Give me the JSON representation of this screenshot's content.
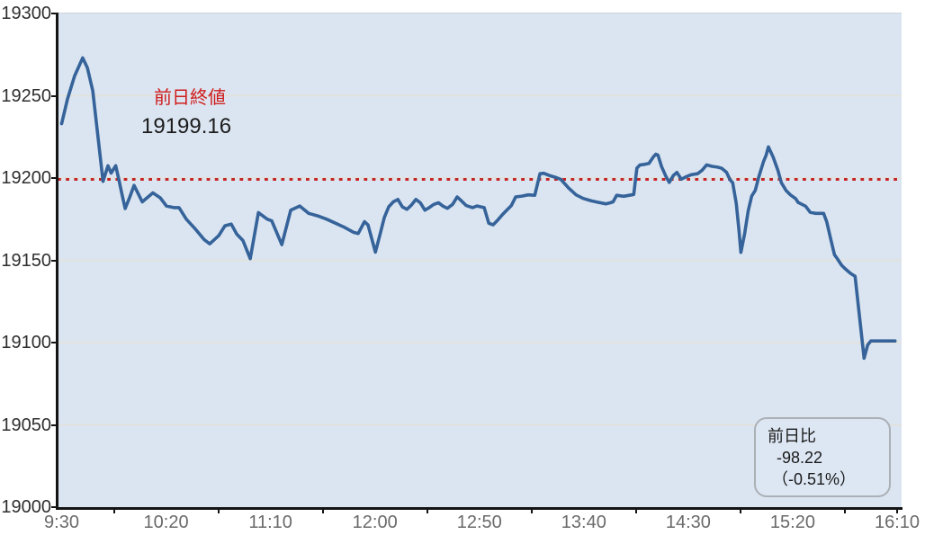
{
  "chart_data": {
    "type": "line",
    "title": "",
    "legend": [],
    "grid": "horizontal-only",
    "y_axis": {
      "min": 19000,
      "max": 19300,
      "step": 50,
      "tick_labels": [
        "19300",
        "19250",
        "19200",
        "19150",
        "19100",
        "19050",
        "19000"
      ]
    },
    "x_axis": {
      "unit": "time",
      "range_minutes": [
        0,
        400
      ],
      "tick_interval_minutes": 50,
      "tick_labels": [
        "9:30",
        "10:20",
        "11:10",
        "12:00",
        "12:50",
        "13:40",
        "14:30",
        "15:20",
        "16:10"
      ]
    },
    "previous_close": {
      "label": "前日終値",
      "value_text": "19199.16",
      "value": 19199.16
    },
    "change_box": {
      "label": "前日比",
      "change_text": "-98.22",
      "percent_text": "（-0.51%）",
      "change": -98.22,
      "percent": -0.51
    },
    "series": [
      {
        "name": "intraday-price",
        "points": [
          [
            0,
            19233
          ],
          [
            2.8,
            19248
          ],
          [
            6.2,
            19262
          ],
          [
            10.1,
            19273
          ],
          [
            12.3,
            19267
          ],
          [
            14.9,
            19253
          ],
          [
            19.8,
            19198
          ],
          [
            22.2,
            19207.5
          ],
          [
            23.7,
            19203
          ],
          [
            25.9,
            19207.5
          ],
          [
            27.4,
            19199
          ],
          [
            28.9,
            19190
          ],
          [
            30.4,
            19181.5
          ],
          [
            32.5,
            19188
          ],
          [
            34.7,
            19195.5
          ],
          [
            38.6,
            19185.5
          ],
          [
            43.7,
            19191
          ],
          [
            47.2,
            19188
          ],
          [
            50.2,
            19183
          ],
          [
            53.7,
            19182
          ],
          [
            56.2,
            19182
          ],
          [
            59.7,
            19175
          ],
          [
            64,
            19169
          ],
          [
            68.3,
            19162.5
          ],
          [
            70.9,
            19160
          ],
          [
            75.2,
            19165
          ],
          [
            78.2,
            19171
          ],
          [
            81.2,
            19172
          ],
          [
            83.8,
            19166
          ],
          [
            86.8,
            19162
          ],
          [
            90.3,
            19151
          ],
          [
            94.2,
            19179
          ],
          [
            98.5,
            19175
          ],
          [
            100.6,
            19174
          ],
          [
            105.4,
            19159.5
          ],
          [
            109.7,
            19180.5
          ],
          [
            114,
            19183
          ],
          [
            118.3,
            19178.5
          ],
          [
            122.6,
            19177
          ],
          [
            126.9,
            19175
          ],
          [
            131.2,
            19172.5
          ],
          [
            135.5,
            19170
          ],
          [
            139.8,
            19167
          ],
          [
            142,
            19166.3
          ],
          [
            145,
            19173.5
          ],
          [
            146.7,
            19171.5
          ],
          [
            150.2,
            19155
          ],
          [
            152.3,
            19165
          ],
          [
            154.5,
            19176
          ],
          [
            156.6,
            19182.5
          ],
          [
            158.8,
            19185.5
          ],
          [
            161,
            19187
          ],
          [
            163.1,
            19182.5
          ],
          [
            165.3,
            19181
          ],
          [
            167.4,
            19183.5
          ],
          [
            169.6,
            19187
          ],
          [
            171.7,
            19185
          ],
          [
            173.9,
            19180.5
          ],
          [
            176,
            19182
          ],
          [
            178.2,
            19184
          ],
          [
            180.4,
            19185
          ],
          [
            182.5,
            19183
          ],
          [
            184.7,
            19181.6
          ],
          [
            187.2,
            19184
          ],
          [
            189.4,
            19188.5
          ],
          [
            191.5,
            19186
          ],
          [
            193.7,
            19183.3
          ],
          [
            196.7,
            19182
          ],
          [
            198.9,
            19183
          ],
          [
            202.3,
            19182
          ],
          [
            204.5,
            19172.5
          ],
          [
            206.6,
            19171.6
          ],
          [
            208.8,
            19174.5
          ],
          [
            211,
            19177.7
          ],
          [
            213.1,
            19180.5
          ],
          [
            215.3,
            19183.3
          ],
          [
            217.4,
            19188.5
          ],
          [
            220.4,
            19189
          ],
          [
            223.4,
            19189.8
          ],
          [
            226.5,
            19189.5
          ],
          [
            229,
            19202.6
          ],
          [
            230.8,
            19202.9
          ],
          [
            233.4,
            19201.6
          ],
          [
            236.8,
            19200.3
          ],
          [
            239,
            19199.2
          ],
          [
            242.8,
            19193.8
          ],
          [
            246.3,
            19189.8
          ],
          [
            249.7,
            19187.6
          ],
          [
            253.6,
            19186.1
          ],
          [
            257.1,
            19185.2
          ],
          [
            260.5,
            19184.3
          ],
          [
            262.7,
            19185
          ],
          [
            264,
            19185.5
          ],
          [
            265.7,
            19189.5
          ],
          [
            269.1,
            19188.9
          ],
          [
            271.7,
            19189.5
          ],
          [
            273.9,
            19190
          ],
          [
            275.4,
            19206
          ],
          [
            276.9,
            19208
          ],
          [
            279.1,
            19208.3
          ],
          [
            281.2,
            19208.9
          ],
          [
            283.4,
            19213
          ],
          [
            284.5,
            19214.5
          ],
          [
            285.5,
            19214
          ],
          [
            287.2,
            19207
          ],
          [
            289.4,
            19200.7
          ],
          [
            290.9,
            19197.4
          ],
          [
            292.9,
            19201.6
          ],
          [
            294.6,
            19203.4
          ],
          [
            296.7,
            19199.3
          ],
          [
            298.9,
            19200.7
          ],
          [
            301.4,
            19202
          ],
          [
            304.5,
            19202.6
          ],
          [
            306.6,
            19204.7
          ],
          [
            308.8,
            19208
          ],
          [
            311.4,
            19207.1
          ],
          [
            314,
            19206.6
          ],
          [
            316.1,
            19205.9
          ],
          [
            318.3,
            19203.5
          ],
          [
            320,
            19199
          ],
          [
            321.3,
            19197.1
          ],
          [
            323,
            19184.3
          ],
          [
            324.3,
            19168
          ],
          [
            325.2,
            19154.8
          ],
          [
            327,
            19166
          ],
          [
            328.7,
            19180
          ],
          [
            330.4,
            19189
          ],
          [
            332.1,
            19192.5
          ],
          [
            333.8,
            19200.7
          ],
          [
            336,
            19209.8
          ],
          [
            337.3,
            19214
          ],
          [
            338.4,
            19218.9
          ],
          [
            340.7,
            19212.6
          ],
          [
            342.9,
            19204.7
          ],
          [
            344.6,
            19197.1
          ],
          [
            346.8,
            19192.5
          ],
          [
            348.9,
            19189.8
          ],
          [
            351.5,
            19187.4
          ],
          [
            352.6,
            19185.2
          ],
          [
            356.2,
            19182.9
          ],
          [
            358.4,
            19179.2
          ],
          [
            361,
            19178.5
          ],
          [
            364.8,
            19178.5
          ],
          [
            366.3,
            19173.4
          ],
          [
            368.3,
            19162.5
          ],
          [
            370,
            19153.4
          ],
          [
            371.3,
            19151.1
          ],
          [
            373.4,
            19147
          ],
          [
            375.6,
            19144.3
          ],
          [
            377.7,
            19142.1
          ],
          [
            379.9,
            19140.3
          ],
          [
            384.2,
            19090.5
          ],
          [
            385.9,
            19098.5
          ],
          [
            387.4,
            19101
          ],
          [
            389.3,
            19101
          ],
          [
            399,
            19101
          ]
        ]
      }
    ]
  },
  "colors": {
    "plot_background": "#dbe5f1",
    "line": "#35639a",
    "prev_close_line": "#c42525",
    "prev_close_label": "#cf1d1d",
    "gridline": "#e4e1d8",
    "axis": "#141414",
    "y_label": "#2e2e2e",
    "x_label": "#6a6a6a",
    "box_border": "#abb0b6",
    "box_background": "#dde7f3"
  }
}
